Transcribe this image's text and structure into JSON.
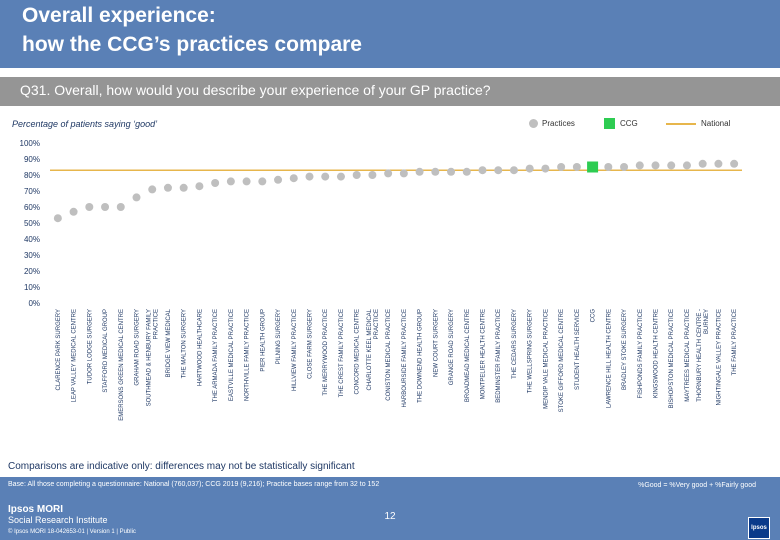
{
  "header": {
    "title_line1": "Overall experience:",
    "title_line2": "how the CCG’s practices compare"
  },
  "question": "Q31. Overall, how would you describe your experience of your GP practice?",
  "subtitle": "Percentage of patients saying ‘good’",
  "legend": {
    "practices": "Practices",
    "ccg": "CCG",
    "national": "National"
  },
  "colors": {
    "practice_marker": "#bfbfbf",
    "ccg_marker": "#2ecc52",
    "national_line": "#e7b64c",
    "header_band": "#5a80b6",
    "question_band": "#959595",
    "text": "#1f3864"
  },
  "chart_data": {
    "type": "scatter",
    "ylim": [
      0,
      100
    ],
    "yticks": [
      "0%",
      "10%",
      "20%",
      "30%",
      "40%",
      "50%",
      "60%",
      "70%",
      "80%",
      "90%",
      "100%"
    ],
    "grid": false,
    "national_value": 83,
    "categories": [
      "CLARENCE PARK SURGERY",
      "LEAP VALLEY MEDICAL CENTRE",
      "TUDOR LODGE SURGERY",
      "STAFFORD MEDICAL GROUP",
      "EMERSONS GREEN MEDICAL CENTRE",
      "GRAHAM ROAD SURGERY",
      "SOUTHMEAD & HENBURY FAMILY PRACTICE",
      "BRIDGE VIEW MEDICAL",
      "THE MALTON SURGERY",
      "HARTWOOD HEALTHCARE",
      "THE ARMADA FAMILY PRACTICE",
      "EASTVILLE MEDICAL PRACTICE",
      "NORTHVILLE FAMILY PRACTICE",
      "PIER HEALTH GROUP",
      "PILNING SURGERY",
      "HILLVIEW FAMILY PRACTICE",
      "CLOSE FARM SURGERY",
      "THE MERRYWOOD PRACTICE",
      "THE CREST FAMILY PRACTICE",
      "CONCORD MEDICAL CENTRE",
      "CHARLOTTE KEEL MEDICAL PRACTICE",
      "CONISTON MEDICAL PRACTICE",
      "HARBOURSIDE FAMILY PRACTICE",
      "THE DOWNEND HEALTH GROUP",
      "NEW COURT SURGERY",
      "GRANGE ROAD SURGERY",
      "BROADMEAD MEDICAL CENTRE",
      "MONTPELIER HEALTH CENTRE",
      "BEDMINSTER FAMILY PRACTICE",
      "THE CEDARS SURGERY",
      "THE WELLSPRING SURGERY",
      "MENDIP VALE MEDICAL PRACTICE",
      "STOKE GIFFORD MEDICAL CENTRE",
      "STUDENT HEALTH SERVICE",
      "CCG",
      "LAWRENCE HILL HEALTH CENTRE",
      "BRADLEY STOKE SURGERY",
      "FISHPONDS FAMILY PRACTICE",
      "KINGSWOOD HEALTH CENTRE",
      "BISHOPSTON MEDICAL PRACTICE",
      "MAYTREES MEDICAL PRACTICE",
      "THORNBURY HEALTH CENTRE - BURNEY",
      "NIGHTINGALE VALLEY PRACTICE",
      "THE FAMILY PRACTICE"
    ],
    "values": [
      53,
      57,
      60,
      60,
      60,
      66,
      71,
      72,
      72,
      73,
      75,
      76,
      76,
      76,
      77,
      78,
      79,
      79,
      79,
      80,
      80,
      81,
      81,
      82,
      82,
      82,
      82,
      83,
      83,
      83,
      84,
      84,
      85,
      85,
      85,
      85,
      85,
      86,
      86,
      86,
      86,
      87,
      87,
      87
    ],
    "ccg_category": "CCG"
  },
  "footnote": "Comparisons are indicative only: differences may not be statistically significant",
  "footer": {
    "base_note": "Base: All those completing a questionnaire: National (760,037); CCG 2019 (9,216); Practice bases range from 32 to 152",
    "good_definition": "%Good = %Very good + %Fairly good",
    "logo_name": "Ipsos MORI",
    "logo_sub": "Social Research Institute",
    "copyright": "© Ipsos MORI      18-042653-01 | Version 1 | Public",
    "page_number": "12",
    "ipsos_logo": "Ipsos"
  }
}
